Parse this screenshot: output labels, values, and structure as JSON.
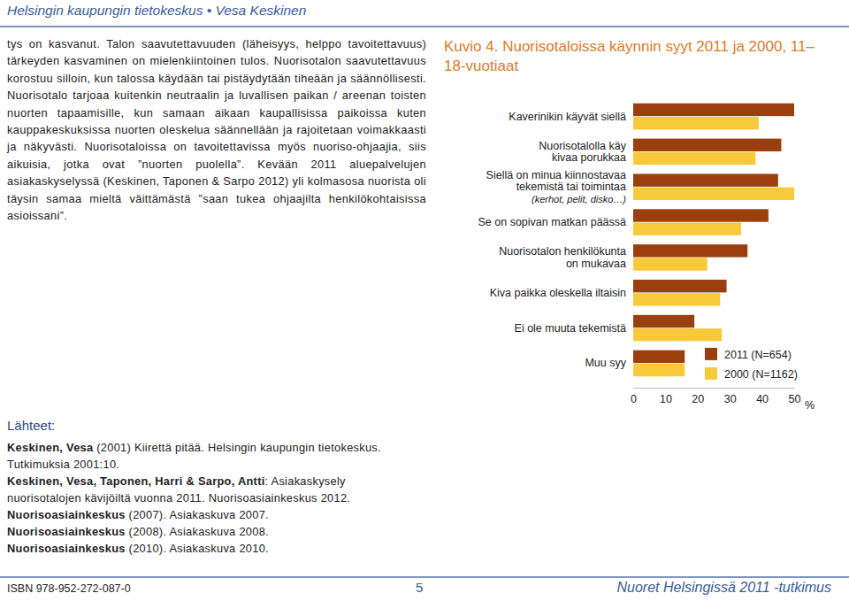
{
  "header": {
    "text": "Helsingin kaupungin tietokeskus • Vesa Keskinen"
  },
  "body": {
    "text": "tys on kasvanut. Talon saavutettavuuden (läheisyys, helppo tavoitettavuus) tärkeyden kasvaminen on mielenkiintoinen tulos. Nuorisotalon saavutettavuus korostuu silloin, kun talossa käydään tai pistäydytään tiheään ja säännöllisesti. Nuorisotalo tarjoaa kuitenkin neutraalin ja luvallisen paikan / areenan toisten nuorten tapaamisille, kun samaan aikaan kaupallisissa paikoissa kuten kauppakeskuksissa nuorten oleskelua säännellään ja rajoitetaan voimakkaasti ja näkyvästi. Nuorisotaloissa on tavoitettavissa myös nuoriso-ohjaajia, siis aikuisia, jotka ovat ”nuorten puolella”. Kevään 2011 aluepalvelujen asiakaskyselyssä (Keskinen, Taponen & Sarpo 2012) yli kolmasosa nuorista oli täysin samaa mieltä väittämästä ”saan tukea ohjaajilta henkilökohtaisissa asioissani”."
  },
  "sources": {
    "title": "Lähteet:",
    "items": [
      {
        "author": "Keskinen, Vesa",
        "text": " (2001) Kiirettä pitää. Helsingin kaupungin tietokeskus. Tutkimuksia 2001:10."
      },
      {
        "author": "Keskinen, Vesa, Taponen, Harri & Sarpo, Antti",
        "text": ": Asiakaskysely nuorisotalojen kävijöiltä vuonna 2011. Nuorisoasiainkeskus 2012."
      },
      {
        "author": "Nuorisoasiainkeskus",
        "text": " (2007). Asiakaskuva 2007."
      },
      {
        "author": "Nuorisoasiainkeskus",
        "text": " (2008). Asiakaskuva 2008."
      },
      {
        "author": "Nuorisoasiainkeskus",
        "text": " (2010). Asiakaskuva 2010."
      }
    ]
  },
  "footer": {
    "isbn": "ISBN 978-952-272-087-0",
    "page": "5",
    "series": "Nuoret Helsingissä 2011 -tutkimus"
  },
  "chart_data": {
    "type": "bar",
    "orientation": "horizontal",
    "title": "Kuvio 4. Nuorisotaloissa käynnin syyt 2011 ja 2000, 11–18-vuotiaat",
    "categories": [
      "Kaverinikin käyvät siellä",
      "Nuorisotalolla käy\nkivaa porukkaa",
      "Siellä on minua kiinnostavaa\ntekemistä tai toimintaa\n(kerhot, pelit, disko…)",
      "Se on sopivan matkan päässä",
      "Nuorisotalon henkilökunta\non mukavaa",
      "Kiva paikka oleskella iltaisin",
      "Ei ole muuta tekemistä",
      "Muu syy"
    ],
    "series": [
      {
        "name": "2011 (N=654)",
        "color": "#9b3f0e",
        "values": [
          50,
          46,
          45,
          42,
          35.5,
          29,
          19,
          16
        ]
      },
      {
        "name": "2000 (N=1162)",
        "color": "#f9c93c",
        "values": [
          39,
          38,
          50,
          33.5,
          23,
          27,
          27.5,
          16
        ]
      }
    ],
    "xlim": [
      0,
      50
    ],
    "xticks": [
      0,
      10,
      20,
      30,
      40,
      50
    ],
    "xlabel": "%",
    "grid": false,
    "legend": "lower right"
  }
}
